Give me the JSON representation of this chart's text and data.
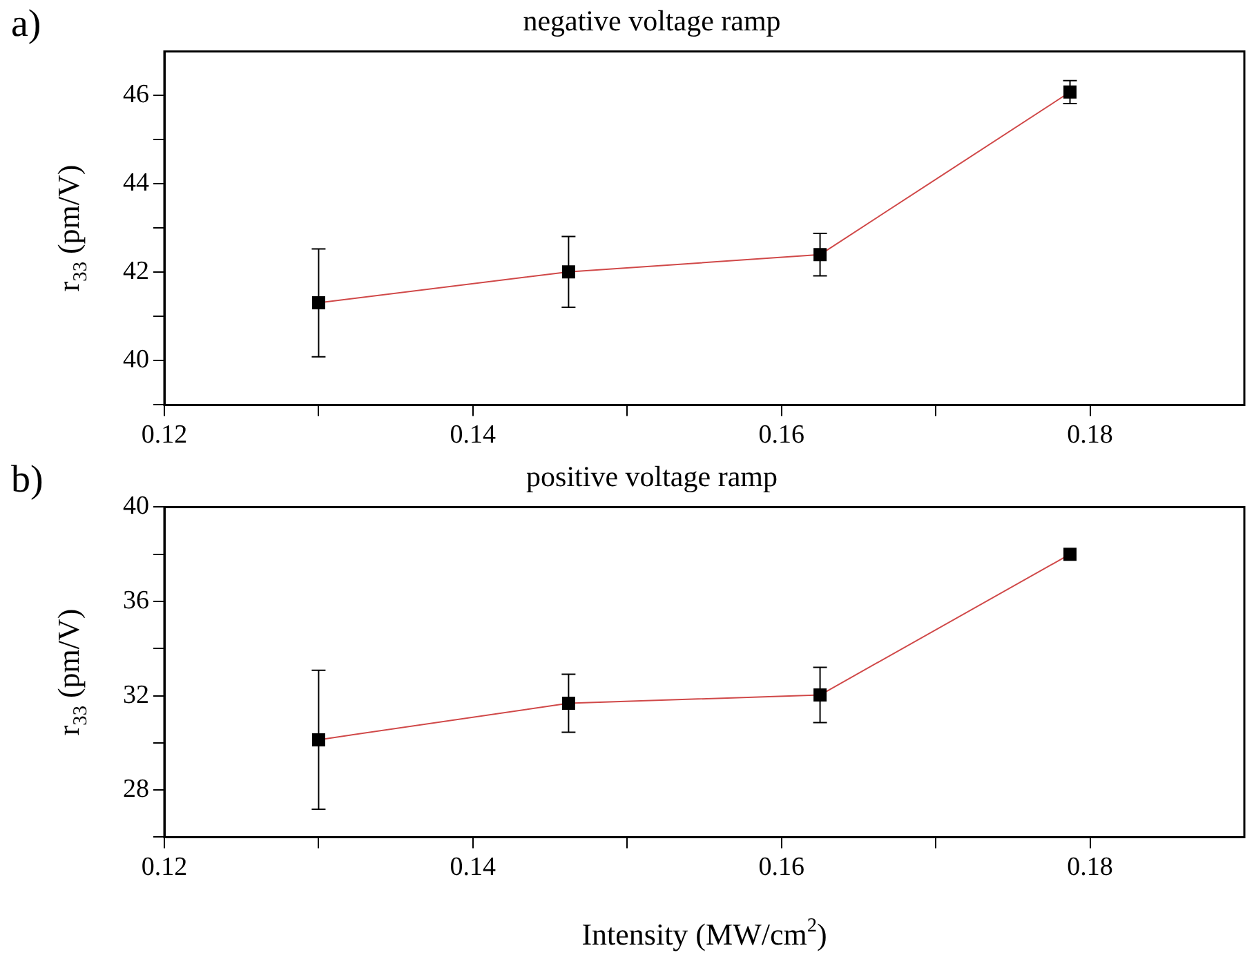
{
  "chart_data": [
    {
      "type": "line",
      "title": "negative voltage ramp",
      "ylabel": "r$_{33}$ (pm/V)",
      "annotations": [
        "a)"
      ],
      "marker": "square",
      "x": [
        0.13,
        0.1462,
        0.1625,
        0.1787
      ],
      "series": [
        {
          "color": "#d04848",
          "values": [
            41.31,
            42.01,
            42.4,
            46.08
          ],
          "errors": [
            1.22,
            0.8,
            0.48,
            0.26
          ]
        }
      ],
      "xlim": [
        0.12,
        0.19
      ],
      "xticks": [
        0.12,
        {
          "value": 0.13,
          "label": null
        },
        0.14,
        {
          "value": 0.15,
          "label": null
        },
        0.16,
        {
          "value": 0.17,
          "label": null
        },
        0.18
      ],
      "ylim": [
        39,
        47
      ],
      "yticks": [
        {
          "value": 39,
          "label": null
        },
        40,
        {
          "value": 41,
          "label": null
        },
        42,
        {
          "value": 43,
          "label": null
        },
        44,
        {
          "value": 45,
          "label": null
        },
        46
      ]
    },
    {
      "type": "line",
      "title": "positive voltage ramp",
      "xlabel": "Intensity (MW/cm$^{2}$)",
      "ylabel": "r$_{33}$ (pm/V)",
      "annotations": [
        "b)"
      ],
      "marker": "square",
      "x": [
        0.13,
        0.1462,
        0.1625,
        0.1787
      ],
      "series": [
        {
          "color": "#d04848",
          "values": [
            30.13,
            31.68,
            32.03,
            38.0
          ],
          "errors": [
            2.95,
            1.23,
            1.17,
            null
          ]
        }
      ],
      "xlim": [
        0.12,
        0.19
      ],
      "xticks": [
        0.12,
        {
          "value": 0.13,
          "label": null
        },
        0.14,
        {
          "value": 0.15,
          "label": null
        },
        0.16,
        {
          "value": 0.17,
          "label": null
        },
        0.18
      ],
      "ylim": [
        26,
        40
      ],
      "yticks": [
        {
          "value": 26,
          "label": null
        },
        28,
        {
          "value": 30,
          "label": null
        },
        32,
        {
          "value": 34,
          "label": null
        },
        36,
        {
          "value": 38,
          "label": null
        },
        40
      ]
    }
  ]
}
